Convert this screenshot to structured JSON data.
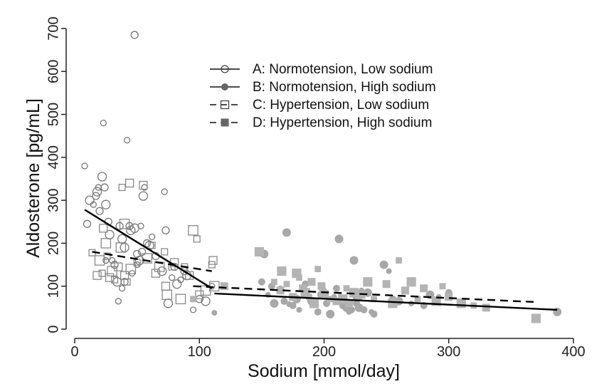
{
  "chart_data": {
    "type": "scatter",
    "xlabel": "Sodium [mmol/day]",
    "ylabel": "Aldosterone [pg/mL]",
    "xlim": [
      0,
      400
    ],
    "ylim": [
      0,
      700
    ],
    "xticks": [
      0,
      100,
      200,
      300,
      400
    ],
    "yticks": [
      0,
      100,
      200,
      300,
      400,
      500,
      600,
      700
    ],
    "legend_position": "top-center",
    "series": [
      {
        "name": "A: Normotension, Low sodium",
        "marker": "open-circle",
        "line": "solid",
        "color": "#777777",
        "points": [
          [
            8,
            380
          ],
          [
            10,
            245
          ],
          [
            12,
            300
          ],
          [
            15,
            290
          ],
          [
            17,
            310
          ],
          [
            18,
            320
          ],
          [
            19,
            330
          ],
          [
            20,
            275
          ],
          [
            22,
            355
          ],
          [
            23,
            480
          ],
          [
            24,
            330
          ],
          [
            25,
            290
          ],
          [
            25,
            160
          ],
          [
            27,
            250
          ],
          [
            28,
            220
          ],
          [
            30,
            160
          ],
          [
            32,
            150
          ],
          [
            34,
            110
          ],
          [
            35,
            65
          ],
          [
            36,
            240
          ],
          [
            38,
            210
          ],
          [
            38,
            95
          ],
          [
            40,
            110
          ],
          [
            40,
            190
          ],
          [
            42,
            440
          ],
          [
            44,
            240
          ],
          [
            45,
            230
          ],
          [
            46,
            130
          ],
          [
            48,
            685
          ],
          [
            48,
            235
          ],
          [
            50,
            150
          ],
          [
            50,
            175
          ],
          [
            52,
            160
          ],
          [
            53,
            240
          ],
          [
            54,
            180
          ],
          [
            55,
            310
          ],
          [
            56,
            330
          ],
          [
            58,
            200
          ],
          [
            60,
            195
          ],
          [
            62,
            215
          ],
          [
            65,
            170
          ],
          [
            70,
            135
          ],
          [
            72,
            320
          ],
          [
            73,
            230
          ],
          [
            75,
            60
          ],
          [
            78,
            120
          ],
          [
            80,
            145
          ],
          [
            82,
            105
          ],
          [
            85,
            115
          ],
          [
            88,
            135
          ],
          [
            90,
            125
          ],
          [
            95,
            45
          ],
          [
            100,
            70
          ],
          [
            105,
            65
          ],
          [
            110,
            100
          ]
        ]
      },
      {
        "name": "B: Normotension, High sodium",
        "marker": "filled-circle",
        "line": "solid",
        "color": "#a8a8a8",
        "points": [
          [
            112,
            38
          ],
          [
            150,
            110
          ],
          [
            152,
            175
          ],
          [
            155,
            80
          ],
          [
            158,
            100
          ],
          [
            160,
            60
          ],
          [
            165,
            95
          ],
          [
            168,
            65
          ],
          [
            170,
            225
          ],
          [
            172,
            58
          ],
          [
            175,
            55
          ],
          [
            178,
            70
          ],
          [
            180,
            45
          ],
          [
            185,
            105
          ],
          [
            190,
            65
          ],
          [
            192,
            55
          ],
          [
            195,
            40
          ],
          [
            198,
            80
          ],
          [
            200,
            90
          ],
          [
            202,
            60
          ],
          [
            205,
            35
          ],
          [
            208,
            75
          ],
          [
            210,
            95
          ],
          [
            212,
            210
          ],
          [
            214,
            65
          ],
          [
            215,
            55
          ],
          [
            218,
            50
          ],
          [
            220,
            40
          ],
          [
            222,
            45
          ],
          [
            224,
            160
          ],
          [
            225,
            75
          ],
          [
            226,
            60
          ],
          [
            228,
            50
          ],
          [
            230,
            90
          ],
          [
            232,
            45
          ],
          [
            235,
            85
          ],
          [
            238,
            40
          ],
          [
            240,
            35
          ],
          [
            248,
            150
          ],
          [
            252,
            135
          ],
          [
            255,
            70
          ],
          [
            260,
            65
          ],
          [
            270,
            60
          ],
          [
            280,
            55
          ],
          [
            285,
            80
          ],
          [
            292,
            75
          ],
          [
            300,
            85
          ],
          [
            387,
            40
          ]
        ]
      },
      {
        "name": "C: Hypertension, Low sodium",
        "marker": "open-square",
        "line": "dashed",
        "color": "#888888",
        "points": [
          [
            14,
            178
          ],
          [
            18,
            125
          ],
          [
            20,
            160
          ],
          [
            22,
            130
          ],
          [
            23,
            235
          ],
          [
            25,
            200
          ],
          [
            26,
            170
          ],
          [
            28,
            120
          ],
          [
            30,
            135
          ],
          [
            32,
            115
          ],
          [
            35,
            145
          ],
          [
            37,
            190
          ],
          [
            38,
            330
          ],
          [
            40,
            125
          ],
          [
            40,
            245
          ],
          [
            42,
            110
          ],
          [
            44,
            340
          ],
          [
            45,
            140
          ],
          [
            50,
            155
          ],
          [
            55,
            335
          ],
          [
            58,
            165
          ],
          [
            62,
            195
          ],
          [
            65,
            130
          ],
          [
            68,
            145
          ],
          [
            72,
            180
          ],
          [
            73,
            100
          ],
          [
            74,
            80
          ],
          [
            78,
            145
          ],
          [
            80,
            155
          ],
          [
            85,
            70
          ],
          [
            88,
            145
          ],
          [
            92,
            125
          ],
          [
            95,
            230
          ],
          [
            98,
            210
          ],
          [
            100,
            80
          ],
          [
            105,
            90
          ],
          [
            110,
            150
          ],
          [
            111,
            160
          ],
          [
            112,
            100
          ]
        ]
      },
      {
        "name": "D: Hypertension, High sodium",
        "marker": "filled-square",
        "line": "dashed",
        "color": "#b4b4b4",
        "points": [
          [
            95,
            70
          ],
          [
            120,
            100
          ],
          [
            148,
            180
          ],
          [
            160,
            110
          ],
          [
            165,
            90
          ],
          [
            166,
            135
          ],
          [
            170,
            105
          ],
          [
            175,
            75
          ],
          [
            178,
            130
          ],
          [
            180,
            120
          ],
          [
            183,
            95
          ],
          [
            185,
            85
          ],
          [
            188,
            75
          ],
          [
            190,
            110
          ],
          [
            192,
            60
          ],
          [
            195,
            140
          ],
          [
            198,
            100
          ],
          [
            200,
            80
          ],
          [
            205,
            70
          ],
          [
            210,
            65
          ],
          [
            215,
            70
          ],
          [
            218,
            95
          ],
          [
            220,
            60
          ],
          [
            224,
            85
          ],
          [
            228,
            75
          ],
          [
            230,
            80
          ],
          [
            235,
            110
          ],
          [
            240,
            70
          ],
          [
            250,
            105
          ],
          [
            255,
            60
          ],
          [
            260,
            160
          ],
          [
            265,
            90
          ],
          [
            270,
            110
          ],
          [
            275,
            70
          ],
          [
            280,
            95
          ],
          [
            290,
            65
          ],
          [
            295,
            100
          ],
          [
            300,
            75
          ],
          [
            310,
            60
          ],
          [
            320,
            55
          ],
          [
            330,
            50
          ],
          [
            370,
            25
          ]
        ]
      }
    ],
    "fit_lines": [
      {
        "series": "A: Normotension, Low sodium",
        "style": "solid",
        "from": [
          8,
          278
        ],
        "to": [
          110,
          95
        ]
      },
      {
        "series": "B: Normotension, High sodium",
        "style": "solid",
        "from": [
          112,
          83
        ],
        "to": [
          387,
          45
        ]
      },
      {
        "series": "C: Hypertension, Low sodium",
        "style": "dashed",
        "from": [
          14,
          180
        ],
        "to": [
          110,
          135
        ]
      },
      {
        "series": "D: Hypertension, High sodium",
        "style": "dashed",
        "from": [
          95,
          100
        ],
        "to": [
          370,
          63
        ]
      }
    ]
  }
}
